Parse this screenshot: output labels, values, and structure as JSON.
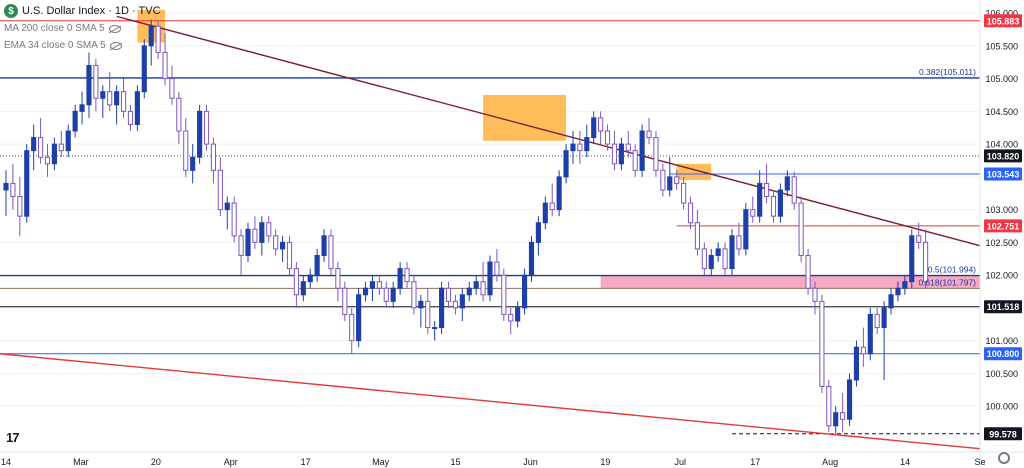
{
  "header": {
    "title": "U.S. Dollar Index · 1D · TVC",
    "logo_glyph": "$",
    "indicators": [
      {
        "label": "MA 200 close 0 SMA 5"
      },
      {
        "label": "EMA 34 close 0 SMA 5"
      }
    ]
  },
  "footer": {
    "brand": "17"
  },
  "chart_data": {
    "type": "candlestick",
    "symbol": "U.S. Dollar Index",
    "timeframe": "1D",
    "exchange": "TVC",
    "ylim": [
      99.3,
      106.2
    ],
    "y_ticks": [
      "100.000",
      "100.500",
      "101.000",
      "101.500",
      "102.000",
      "102.500",
      "103.000",
      "103.500",
      "104.000",
      "104.500",
      "105.000",
      "105.500",
      "106.000"
    ],
    "x_ticks": [
      "14",
      "Mar",
      "20",
      "Apr",
      "17",
      "May",
      "15",
      "Jun",
      "19",
      "Jul",
      "17",
      "Aug",
      "14",
      "Se"
    ],
    "x_range": [
      0,
      140
    ],
    "price_tags": [
      {
        "label": "105.883",
        "value": 105.883,
        "color": "#f23645"
      },
      {
        "label": "103.820",
        "value": 103.82,
        "color": "#131722"
      },
      {
        "label": "103.543",
        "value": 103.543,
        "color": "#2962ff"
      },
      {
        "label": "102.751",
        "value": 102.751,
        "color": "#f23645"
      },
      {
        "label": "101.518",
        "value": 101.518,
        "color": "#131722"
      },
      {
        "label": "100.800",
        "value": 100.8,
        "color": "#2962ff"
      },
      {
        "label": "99.578",
        "value": 99.578,
        "color": "#131722"
      }
    ],
    "fib_labels": [
      {
        "label": "0.382(105.011)",
        "value": 105.011
      },
      {
        "label": "0.5(101.994)",
        "value": 101.994
      },
      {
        "label": "0.618(101.797)",
        "value": 101.797
      }
    ],
    "colors": {
      "up": "#1e3fa8",
      "down_fill": "#ffffff",
      "down_stroke": "#7e57c2",
      "trend_down": "#7b1f2e",
      "trend_support": "#e53935",
      "zone": "#ffa726",
      "red_zone": "#f06292",
      "fib_line": "#1a3d9c",
      "blue_line": "#2962ff"
    },
    "candles": [
      [
        103.3,
        103.6,
        102.9,
        103.4
      ],
      [
        103.4,
        103.7,
        103.0,
        103.2
      ],
      [
        103.2,
        103.5,
        102.6,
        102.9
      ],
      [
        102.9,
        104.0,
        102.8,
        103.9
      ],
      [
        103.9,
        104.3,
        103.6,
        104.1
      ],
      [
        104.1,
        104.4,
        103.7,
        103.8
      ],
      [
        103.8,
        104.0,
        103.5,
        103.7
      ],
      [
        103.7,
        104.1,
        103.6,
        104.0
      ],
      [
        104.0,
        104.2,
        103.8,
        103.9
      ],
      [
        103.9,
        104.3,
        103.8,
        104.2
      ],
      [
        104.2,
        104.6,
        104.1,
        104.5
      ],
      [
        104.5,
        104.8,
        104.3,
        104.6
      ],
      [
        104.6,
        105.4,
        104.4,
        105.2
      ],
      [
        105.2,
        105.3,
        104.5,
        104.7
      ],
      [
        104.7,
        104.9,
        104.4,
        104.8
      ],
      [
        104.8,
        105.1,
        104.5,
        104.6
      ],
      [
        104.6,
        104.9,
        104.3,
        104.8
      ],
      [
        104.8,
        105.0,
        104.4,
        104.5
      ],
      [
        104.5,
        104.6,
        104.2,
        104.3
      ],
      [
        104.3,
        104.9,
        104.2,
        104.8
      ],
      [
        104.8,
        105.6,
        104.7,
        105.5
      ],
      [
        105.5,
        105.9,
        105.2,
        105.8
      ],
      [
        105.8,
        105.88,
        105.3,
        105.4
      ],
      [
        105.4,
        105.7,
        104.9,
        105.0
      ],
      [
        105.0,
        105.2,
        104.6,
        104.7
      ],
      [
        104.7,
        104.8,
        104.0,
        104.2
      ],
      [
        104.2,
        104.4,
        103.5,
        103.6
      ],
      [
        103.6,
        104.0,
        103.4,
        103.8
      ],
      [
        103.8,
        104.6,
        103.7,
        104.5
      ],
      [
        104.5,
        104.6,
        103.9,
        104.0
      ],
      [
        104.0,
        104.1,
        103.4,
        103.6
      ],
      [
        103.6,
        103.8,
        102.9,
        103.0
      ],
      [
        103.0,
        103.2,
        102.7,
        103.1
      ],
      [
        103.1,
        103.2,
        102.5,
        102.6
      ],
      [
        102.6,
        102.7,
        102.0,
        102.3
      ],
      [
        102.3,
        102.8,
        102.2,
        102.7
      ],
      [
        102.7,
        102.9,
        102.4,
        102.5
      ],
      [
        102.5,
        102.9,
        102.3,
        102.8
      ],
      [
        102.8,
        102.9,
        102.5,
        102.6
      ],
      [
        102.6,
        102.7,
        102.3,
        102.4
      ],
      [
        102.4,
        102.6,
        102.2,
        102.5
      ],
      [
        102.5,
        102.6,
        102.0,
        102.1
      ],
      [
        102.1,
        102.2,
        101.5,
        101.7
      ],
      [
        101.7,
        102.0,
        101.6,
        101.9
      ],
      [
        101.9,
        102.1,
        101.8,
        102.0
      ],
      [
        102.0,
        102.4,
        101.9,
        102.3
      ],
      [
        102.3,
        102.7,
        102.2,
        102.6
      ],
      [
        102.6,
        102.7,
        102.0,
        102.1
      ],
      [
        102.1,
        102.2,
        101.6,
        101.8
      ],
      [
        101.8,
        101.9,
        101.3,
        101.4
      ],
      [
        101.4,
        101.5,
        100.8,
        101.0
      ],
      [
        101.0,
        101.8,
        100.9,
        101.7
      ],
      [
        101.7,
        101.9,
        101.6,
        101.8
      ],
      [
        101.8,
        102.0,
        101.6,
        101.9
      ],
      [
        101.9,
        102.0,
        101.7,
        101.8
      ],
      [
        101.8,
        101.9,
        101.5,
        101.6
      ],
      [
        101.6,
        101.9,
        101.5,
        101.8
      ],
      [
        101.8,
        102.2,
        101.7,
        102.1
      ],
      [
        102.1,
        102.2,
        101.8,
        101.9
      ],
      [
        101.9,
        102.0,
        101.4,
        101.5
      ],
      [
        101.5,
        101.7,
        101.2,
        101.6
      ],
      [
        101.6,
        101.8,
        101.1,
        101.2
      ],
      [
        101.2,
        101.3,
        101.0,
        101.2
      ],
      [
        101.2,
        101.9,
        101.1,
        101.8
      ],
      [
        101.8,
        101.9,
        101.5,
        101.6
      ],
      [
        101.6,
        101.7,
        101.4,
        101.5
      ],
      [
        101.5,
        101.8,
        101.3,
        101.7
      ],
      [
        101.7,
        101.9,
        101.6,
        101.8
      ],
      [
        101.8,
        102.0,
        101.7,
        101.9
      ],
      [
        101.9,
        102.2,
        101.6,
        101.7
      ],
      [
        101.7,
        102.3,
        101.6,
        102.2
      ],
      [
        102.2,
        102.4,
        101.9,
        102.0
      ],
      [
        102.0,
        102.1,
        101.3,
        101.4
      ],
      [
        101.4,
        101.5,
        101.1,
        101.3
      ],
      [
        101.3,
        101.6,
        101.2,
        101.5
      ],
      [
        101.5,
        102.1,
        101.4,
        102.0
      ],
      [
        102.0,
        102.6,
        101.9,
        102.5
      ],
      [
        102.5,
        102.9,
        102.3,
        102.8
      ],
      [
        102.8,
        103.2,
        102.7,
        103.1
      ],
      [
        103.1,
        103.4,
        102.9,
        103.0
      ],
      [
        103.0,
        103.6,
        102.9,
        103.5
      ],
      [
        103.5,
        104.0,
        103.4,
        103.9
      ],
      [
        103.9,
        104.2,
        103.7,
        104.0
      ],
      [
        104.0,
        104.2,
        103.7,
        103.9
      ],
      [
        103.9,
        104.3,
        103.8,
        104.1
      ],
      [
        104.1,
        104.5,
        104.0,
        104.4
      ],
      [
        104.4,
        104.5,
        104.0,
        104.2
      ],
      [
        104.2,
        104.3,
        103.9,
        104.0
      ],
      [
        104.0,
        104.2,
        103.6,
        103.7
      ],
      [
        103.7,
        104.1,
        103.6,
        104.0
      ],
      [
        104.0,
        104.2,
        103.8,
        103.9
      ],
      [
        103.9,
        104.0,
        103.5,
        103.6
      ],
      [
        103.6,
        104.3,
        103.5,
        104.2
      ],
      [
        104.2,
        104.4,
        104.0,
        104.1
      ],
      [
        104.1,
        104.2,
        103.5,
        103.6
      ],
      [
        103.6,
        103.7,
        103.2,
        103.3
      ],
      [
        103.3,
        103.8,
        103.2,
        103.5
      ],
      [
        103.5,
        103.6,
        103.3,
        103.4
      ],
      [
        103.4,
        103.5,
        103.0,
        103.1
      ],
      [
        103.1,
        103.2,
        102.7,
        102.8
      ],
      [
        102.8,
        103.0,
        102.3,
        102.4
      ],
      [
        102.4,
        102.5,
        102.0,
        102.1
      ],
      [
        102.1,
        102.4,
        102.0,
        102.3
      ],
      [
        102.3,
        102.5,
        102.2,
        102.4
      ],
      [
        102.4,
        102.5,
        102.0,
        102.1
      ],
      [
        102.1,
        102.7,
        102.0,
        102.6
      ],
      [
        102.6,
        102.8,
        102.3,
        102.4
      ],
      [
        102.4,
        103.1,
        102.3,
        103.0
      ],
      [
        103.0,
        103.2,
        102.8,
        102.9
      ],
      [
        102.9,
        103.6,
        102.8,
        103.4
      ],
      [
        103.4,
        103.7,
        103.1,
        103.2
      ],
      [
        103.2,
        103.3,
        102.8,
        102.9
      ],
      [
        102.9,
        103.4,
        102.8,
        103.3
      ],
      [
        103.3,
        103.6,
        103.2,
        103.5
      ],
      [
        103.5,
        103.58,
        103.0,
        103.1
      ],
      [
        103.1,
        103.2,
        102.2,
        102.3
      ],
      [
        102.3,
        102.4,
        101.7,
        101.8
      ],
      [
        101.8,
        101.9,
        101.4,
        101.6
      ],
      [
        101.6,
        101.7,
        100.2,
        100.3
      ],
      [
        100.3,
        100.4,
        99.6,
        99.7
      ],
      [
        99.7,
        100.0,
        99.58,
        99.9
      ],
      [
        99.9,
        100.2,
        99.6,
        99.8
      ],
      [
        99.8,
        100.5,
        99.7,
        100.4
      ],
      [
        100.4,
        101.0,
        100.3,
        100.9
      ],
      [
        100.9,
        101.2,
        100.6,
        100.8
      ],
      [
        100.8,
        101.5,
        100.7,
        101.4
      ],
      [
        101.4,
        101.5,
        101.1,
        101.2
      ],
      [
        101.2,
        101.6,
        100.4,
        101.5
      ],
      [
        101.5,
        101.8,
        101.4,
        101.7
      ],
      [
        101.7,
        101.9,
        101.6,
        101.8
      ],
      [
        101.8,
        102.0,
        101.7,
        101.9
      ],
      [
        101.9,
        102.7,
        101.8,
        102.6
      ],
      [
        102.6,
        102.8,
        102.4,
        102.5
      ],
      [
        102.5,
        102.7,
        101.8,
        101.9
      ]
    ]
  }
}
